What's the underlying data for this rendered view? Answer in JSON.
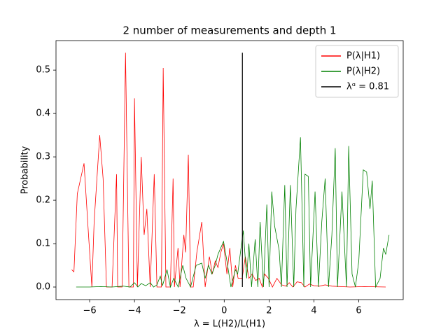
{
  "chart_data": {
    "type": "line",
    "title": "2 number of measurements and depth 1",
    "xlabel": "λ = L(H2)/L(H1)",
    "ylabel": "Probability",
    "xlim": [
      -7.5,
      7.98
    ],
    "ylim": [
      -0.029,
      0.568
    ],
    "xticks": [
      {
        "value": -6,
        "label": "−6"
      },
      {
        "value": -4,
        "label": "−4"
      },
      {
        "value": -2,
        "label": "−2"
      },
      0,
      2,
      4,
      6
    ],
    "yticks": [
      {
        "value": 0,
        "label": "0.0"
      },
      0.1,
      0.2,
      0.3,
      0.4,
      0.5
    ],
    "grid": false,
    "legend": "upper right",
    "series": [
      {
        "name": "P(λ|H1)",
        "color": "#ff0000",
        "x": [
          -6.8,
          -6.7,
          -6.55,
          -6.25,
          -6.05,
          -5.9,
          -5.8,
          -5.55,
          -5.4,
          -5.25,
          -5.0,
          -4.8,
          -4.75,
          -4.55,
          -4.4,
          -4.25,
          -4.05,
          -4.0,
          -3.87,
          -3.7,
          -3.57,
          -3.45,
          -3.3,
          -3.12,
          -3.0,
          -2.8,
          -2.72,
          -2.6,
          -2.4,
          -2.28,
          -2.22,
          -2.06,
          -1.97,
          -1.8,
          -1.72,
          -1.6,
          -1.5,
          -1.38,
          -1.22,
          -1.0,
          -0.85,
          -0.66,
          -0.53,
          -0.4,
          -0.28,
          -0.15,
          -0.03,
          0.12,
          0.25,
          0.38,
          0.5,
          0.62,
          0.8,
          0.94,
          1.1,
          1.25,
          1.4,
          1.56,
          1.7,
          1.8,
          1.97,
          2.15,
          2.35,
          2.56,
          2.75,
          2.9,
          3.06,
          3.25,
          3.44,
          3.6,
          3.8,
          4.0,
          4.25,
          4.5,
          4.8,
          5.2,
          5.6,
          6.25,
          7.2
        ],
        "values": [
          0.04,
          0.035,
          0.215,
          0.285,
          0.12,
          0.0,
          0.15,
          0.35,
          0.25,
          0.0,
          0.0,
          0.26,
          0.0,
          0.0,
          0.54,
          0.0,
          0.0,
          0.435,
          0.0,
          0.3,
          0.12,
          0.18,
          0.0,
          0.26,
          0.0,
          0.0,
          0.505,
          0.0,
          0.0,
          0.25,
          0.0,
          0.09,
          0.0,
          0.12,
          0.08,
          0.305,
          0.0,
          0.0,
          0.08,
          0.15,
          0.0,
          0.07,
          0.03,
          0.06,
          0.045,
          0.08,
          0.1,
          0.03,
          0.09,
          0.0,
          0.05,
          0.02,
          0.02,
          0.07,
          0.02,
          0.03,
          0.015,
          0.02,
          0.0,
          0.03,
          0.02,
          0.0,
          0.02,
          0.005,
          0.002,
          0.01,
          0.0,
          0.012,
          0.01,
          0.0,
          0.007,
          0.003,
          0.002,
          0.005,
          0.002,
          0.001,
          0.0,
          0.001,
          0.0
        ]
      },
      {
        "name": "P(λ|H2)",
        "color": "#008000",
        "x": [
          -6.6,
          -6.0,
          -5.5,
          -5.0,
          -4.5,
          -4.2,
          -4.0,
          -3.85,
          -3.7,
          -3.5,
          -3.3,
          -3.15,
          -3.0,
          -2.85,
          -2.75,
          -2.55,
          -2.4,
          -2.25,
          -2.05,
          -1.85,
          -1.7,
          -1.5,
          -1.25,
          -1.0,
          -0.85,
          -0.7,
          -0.55,
          -0.4,
          -0.28,
          -0.03,
          0.12,
          0.3,
          0.5,
          0.6,
          0.85,
          1.0,
          1.1,
          1.22,
          1.38,
          1.5,
          1.6,
          1.75,
          1.9,
          2.0,
          2.12,
          2.25,
          2.45,
          2.55,
          2.7,
          2.8,
          2.95,
          3.1,
          3.2,
          3.4,
          3.55,
          3.6,
          3.75,
          3.85,
          4.05,
          4.2,
          4.35,
          4.5,
          4.65,
          4.8,
          4.95,
          5.05,
          5.25,
          5.45,
          5.55,
          5.7,
          5.85,
          6.0,
          6.2,
          6.35,
          6.5,
          6.6,
          6.75,
          6.95,
          7.1,
          7.2,
          7.35
        ],
        "values": [
          0.0,
          0.0,
          0.001,
          0.0,
          0.002,
          0.0,
          0.01,
          0.0,
          0.008,
          0.003,
          0.01,
          0.0,
          0.005,
          0.025,
          0.003,
          0.04,
          0.0,
          0.02,
          0.0,
          0.05,
          0.02,
          0.0,
          0.05,
          0.055,
          0.02,
          0.05,
          0.03,
          0.05,
          0.075,
          0.105,
          0.06,
          0.0,
          0.04,
          0.03,
          0.13,
          0.02,
          0.1,
          0.0,
          0.11,
          0.0,
          0.15,
          0.0,
          0.19,
          0.0,
          0.22,
          0.14,
          0.085,
          0.0,
          0.235,
          0.0,
          0.235,
          0.0,
          0.18,
          0.345,
          0.0,
          0.26,
          0.255,
          0.0,
          0.22,
          0.0,
          0.15,
          0.25,
          0.0,
          0.12,
          0.32,
          0.0,
          0.22,
          0.0,
          0.325,
          0.03,
          0.0,
          0.06,
          0.27,
          0.265,
          0.18,
          0.245,
          0.0,
          0.02,
          0.09,
          0.075,
          0.12
        ]
      },
      {
        "name": "λᵅ = 0.81",
        "color": "#000000",
        "x": [
          0.81,
          0.81
        ],
        "values": [
          0.0,
          0.54
        ]
      }
    ]
  }
}
